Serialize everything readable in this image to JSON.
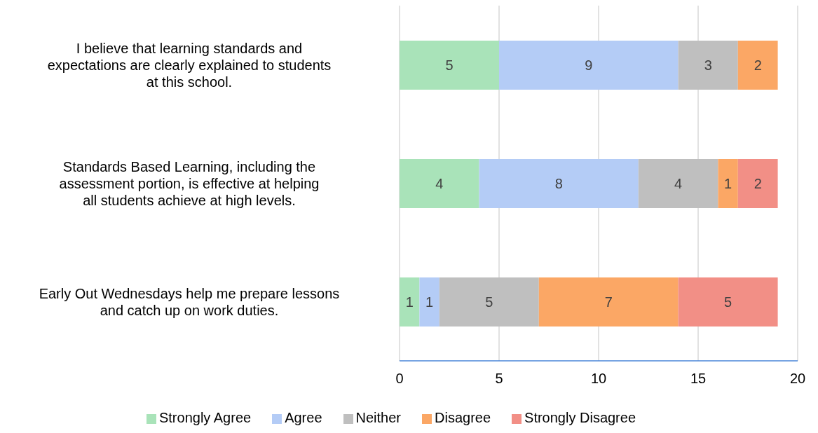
{
  "chart_data": {
    "type": "bar",
    "orientation": "horizontal",
    "stacked": true,
    "categories": [
      "I believe that learning standards and expectations are clearly explained to students at this school.",
      "Standards Based Learning, including the assessment portion, is effective at helping all students achieve at high levels.",
      "Early Out Wednesdays help me prepare lessons and catch up on work duties."
    ],
    "series": [
      {
        "name": "Strongly Agree",
        "color": "#a9e3b9",
        "values": [
          5,
          4,
          1
        ]
      },
      {
        "name": "Agree",
        "color": "#b4ccf6",
        "values": [
          9,
          8,
          1
        ]
      },
      {
        "name": "Neither",
        "color": "#bfbfbf",
        "values": [
          3,
          4,
          5
        ]
      },
      {
        "name": "Disagree",
        "color": "#fba765",
        "values": [
          2,
          1,
          7
        ]
      },
      {
        "name": "Strongly Disagree",
        "color": "#f28f86",
        "values": [
          null,
          2,
          5
        ]
      }
    ],
    "xlim": [
      0,
      20
    ],
    "xticks": [
      0,
      5,
      10,
      15,
      20
    ],
    "grid": "x",
    "legend": "bottom",
    "data_labels": true
  }
}
